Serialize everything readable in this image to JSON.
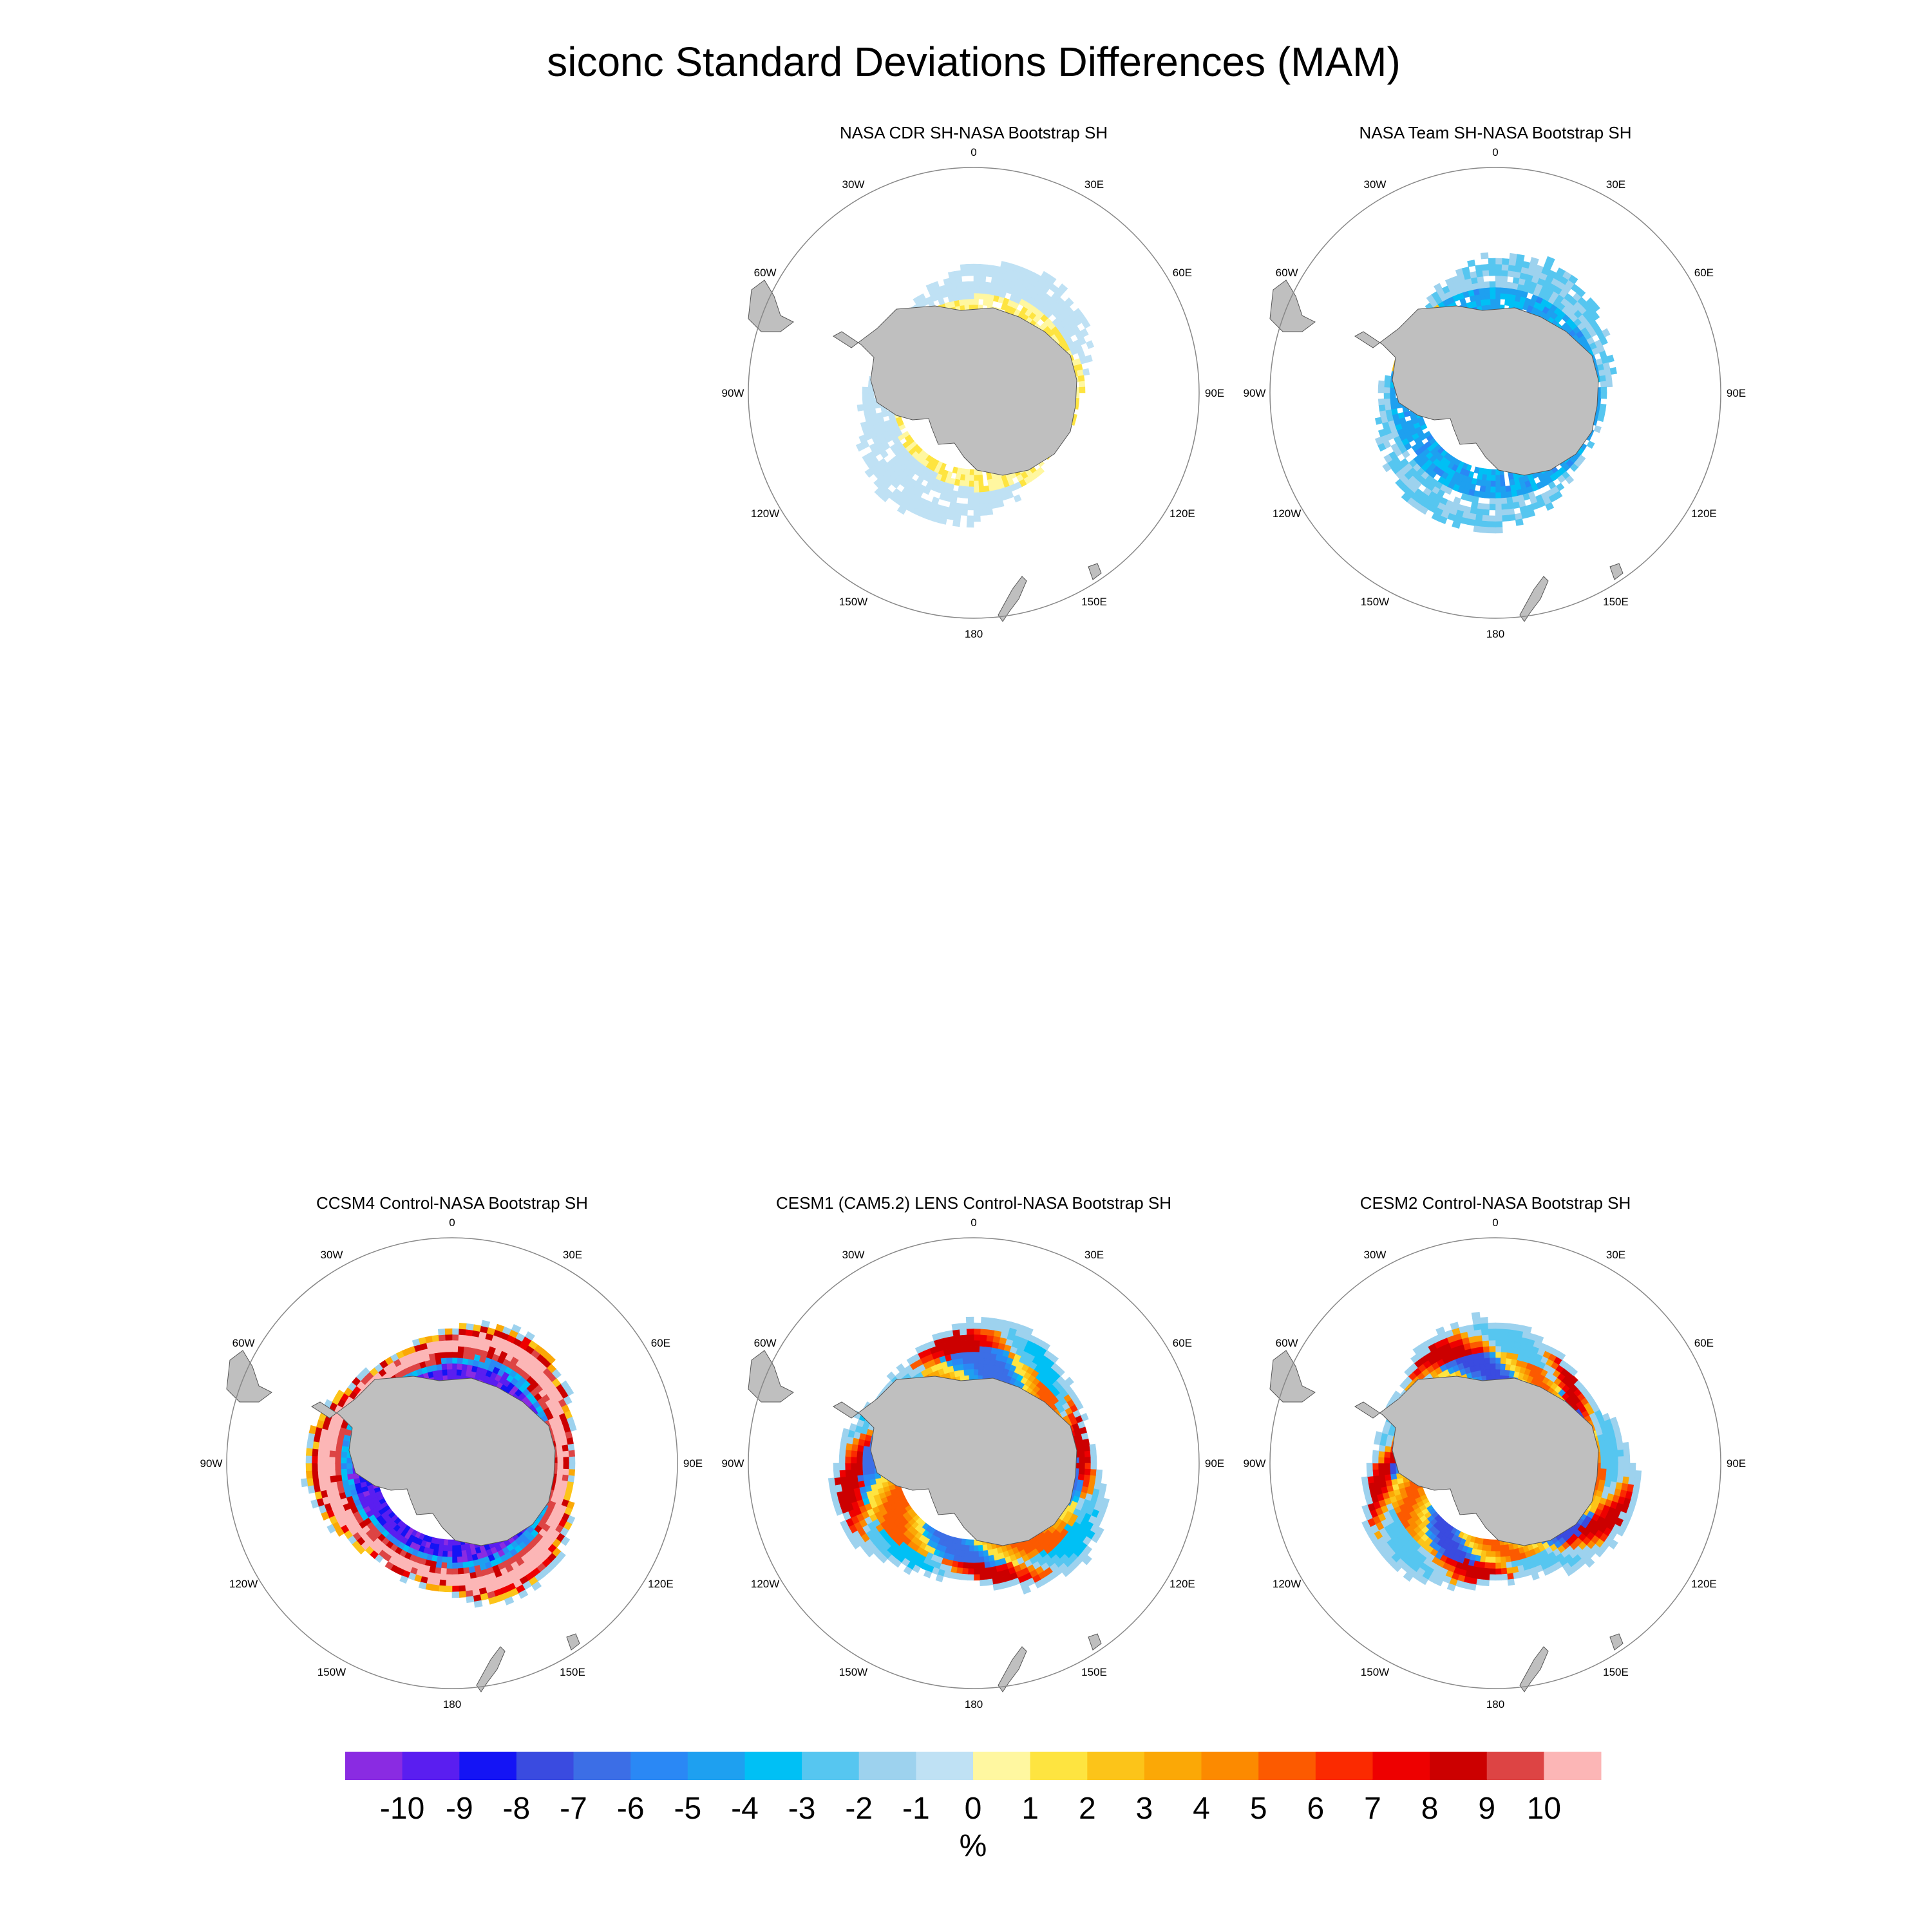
{
  "title": "siconc Standard Deviations Differences (MAM)",
  "panels": [
    {
      "id": "cdr",
      "title": "NASA CDR SH-NASA Bootstrap SH",
      "pattern": "cdr"
    },
    {
      "id": "team",
      "title": "NASA Team SH-NASA Bootstrap SH",
      "pattern": "team"
    },
    {
      "id": "ccsm4",
      "title": "CCSM4 Control-NASA Bootstrap SH",
      "pattern": "ccsm4"
    },
    {
      "id": "cesm1",
      "title": "CESM1 (CAM5.2) LENS Control-NASA Bootstrap SH",
      "pattern": "cesm1"
    },
    {
      "id": "cesm2",
      "title": "CESM2 Control-NASA Bootstrap SH",
      "pattern": "cesm2"
    }
  ],
  "lon_labels": [
    "0",
    "30E",
    "60E",
    "90E",
    "120E",
    "150E",
    "180",
    "150W",
    "120W",
    "90W",
    "60W",
    "30W"
  ],
  "colorbar": {
    "unit": "%",
    "labels": [
      "-10",
      "-9",
      "-8",
      "-7",
      "-6",
      "-5",
      "-4",
      "-3",
      "-2",
      "-1",
      "0",
      "1",
      "2",
      "3",
      "4",
      "5",
      "6",
      "7",
      "8",
      "9",
      "10"
    ],
    "colors": [
      "#8a2be2",
      "#5a1ef0",
      "#1414f5",
      "#3a4be0",
      "#3c6ee6",
      "#2a88f5",
      "#1ea0f0",
      "#00c0f5",
      "#56c6f0",
      "#9dd2ee",
      "#bfe1f4",
      "#fff7a0",
      "#fee440",
      "#fcc419",
      "#fba806",
      "#fc8a00",
      "#fc5a00",
      "#fb2a00",
      "#ee0000",
      "#cc0000",
      "#dd4444",
      "#fcb6b6"
    ]
  },
  "land_color": "#bfbfbf"
}
